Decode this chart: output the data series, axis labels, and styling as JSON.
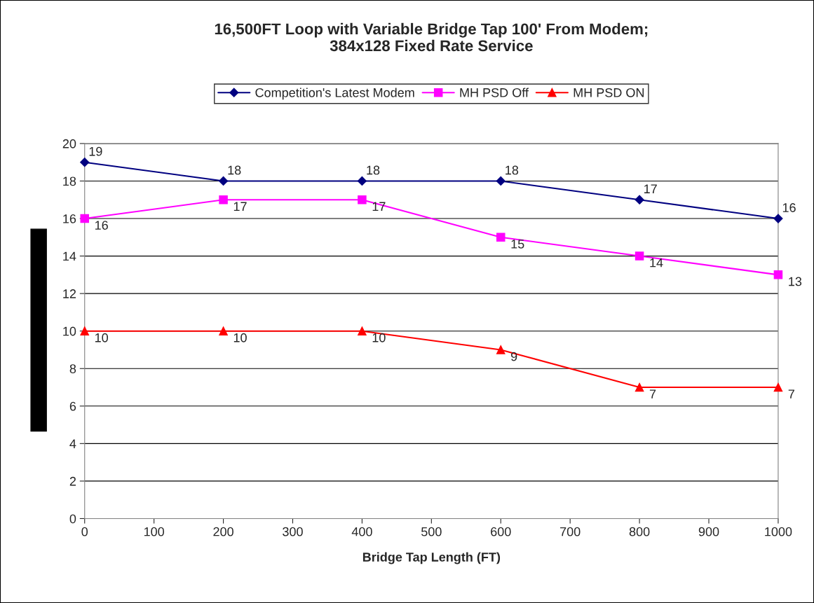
{
  "chart_data": {
    "type": "line",
    "title": "16,500FT Loop with Variable Bridge Tap 100' From Modem;\n384x128 Fixed Rate Service",
    "xlabel": "Bridge Tap Length (FT)",
    "x": [
      0,
      200,
      400,
      600,
      800,
      1000
    ],
    "series": [
      {
        "name": "Competition's Latest Modem",
        "color": "#000080",
        "marker": "diamond",
        "values": [
          19,
          18,
          18,
          18,
          17,
          16
        ]
      },
      {
        "name": "MH PSD Off",
        "color": "#ff00ff",
        "marker": "square",
        "values": [
          16,
          17,
          17,
          15,
          14,
          13
        ]
      },
      {
        "name": "MH PSD ON",
        "color": "#ff0000",
        "marker": "triangle",
        "values": [
          10,
          10,
          10,
          9,
          7,
          7
        ]
      }
    ],
    "xlim": [
      0,
      1000
    ],
    "xticks": [
      0,
      100,
      200,
      300,
      400,
      500,
      600,
      700,
      800,
      900,
      1000
    ],
    "ylim": [
      0,
      20
    ],
    "yticks": [
      0,
      2,
      4,
      6,
      8,
      10,
      12,
      14,
      16,
      18,
      20
    ],
    "grid": "y",
    "legend": "top",
    "data_labels": true,
    "line_style": "solid"
  }
}
